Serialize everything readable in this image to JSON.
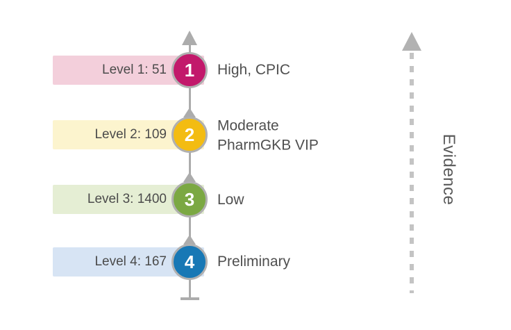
{
  "diagram": {
    "levels": [
      {
        "number": "1",
        "count_label": "Level 1: 51",
        "description": "High, CPIC",
        "circle_color": "#c2196b",
        "bar_color": "#f3cfdb"
      },
      {
        "number": "2",
        "count_label": "Level 2: 109",
        "description": "Moderate\nPharmGKB VIP",
        "circle_color": "#f3bc12",
        "bar_color": "#fcf4ce"
      },
      {
        "number": "3",
        "count_label": "Level 3: 1400",
        "description": "Low",
        "circle_color": "#7ba843",
        "bar_color": "#e5eed4"
      },
      {
        "number": "4",
        "count_label": "Level 4: 167",
        "description": "Preliminary",
        "circle_color": "#1878b5",
        "bar_color": "#d7e4f4"
      }
    ],
    "evidence_axis_label": "Evidence",
    "timeline_color": "#acacac",
    "dashed_line_color": "#c4c4c4",
    "text_color": "#4f4f4f"
  }
}
